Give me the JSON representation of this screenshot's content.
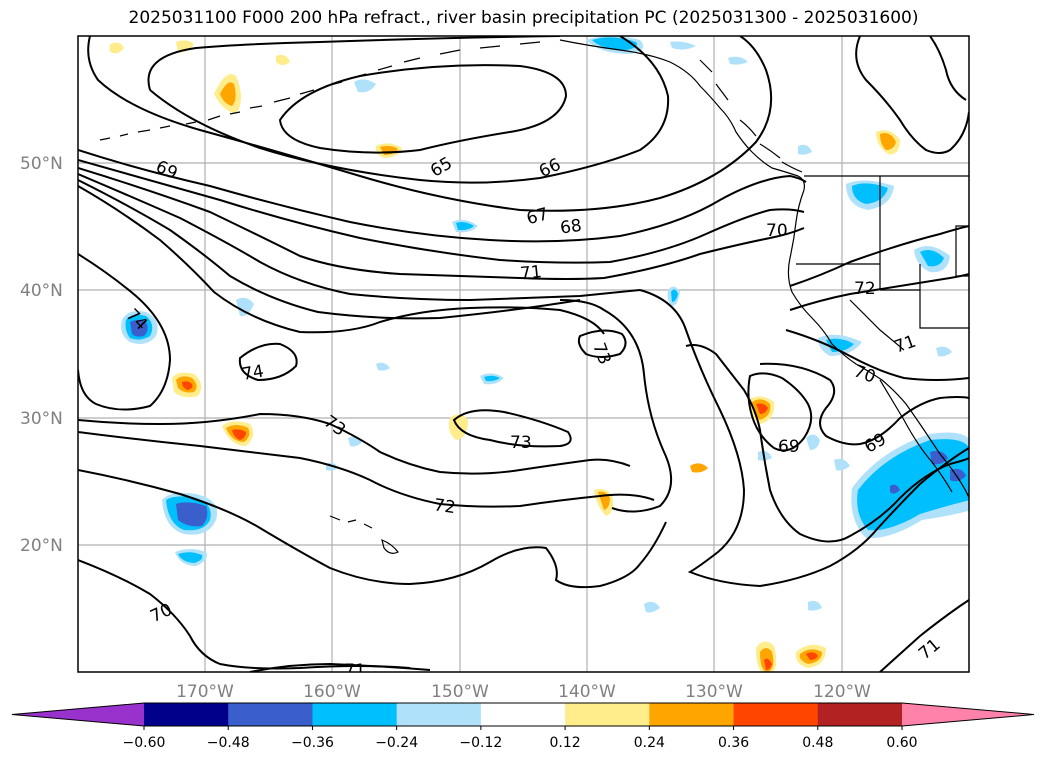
{
  "title": "2025031100 F000 200 hPa refract., river basin precipitation PC (2025031300 - 2025031600)",
  "map": {
    "lon_range": [
      -180,
      -110
    ],
    "lat_range": [
      10,
      60
    ],
    "grid": true,
    "lat_ticks": [
      {
        "lat": 50,
        "label": "50°N"
      },
      {
        "lat": 40,
        "label": "40°N"
      },
      {
        "lat": 30,
        "label": "30°N"
      },
      {
        "lat": 20,
        "label": "20°N"
      }
    ],
    "lon_ticks": [
      {
        "lon": -170,
        "label": "170°W"
      },
      {
        "lon": -160,
        "label": "160°W"
      },
      {
        "lon": -150,
        "label": "150°W"
      },
      {
        "lon": -140,
        "label": "140°W"
      },
      {
        "lon": -130,
        "label": "130°W"
      },
      {
        "lon": -120,
        "label": "120°W"
      }
    ],
    "contour_labels": [
      "65",
      "66",
      "67",
      "68",
      "69",
      "69",
      "69",
      "70",
      "70",
      "70",
      "71",
      "71",
      "71",
      "71",
      "72",
      "72",
      "73",
      "73",
      "73",
      "74",
      "74"
    ]
  },
  "colorbar": {
    "levels": [
      "−0.60",
      "−0.48",
      "−0.36",
      "−0.24",
      "−0.12",
      "0.12",
      "0.24",
      "0.36",
      "0.48",
      "0.60"
    ],
    "colors": [
      "#9932cc",
      "#00008b",
      "#3a5fcd",
      "#00bfff",
      "#afe2fa",
      "#ffffff",
      "#ffec8b",
      "#ffa500",
      "#ff4500",
      "#b22222",
      "#ff82ab"
    ],
    "extend": "both"
  },
  "chart_data": {
    "type": "contour",
    "title": "2025031100 F000 200 hPa refract., river basin precipitation PC (2025031300 - 2025031600)",
    "contour_levels": [
      65,
      66,
      67,
      68,
      69,
      70,
      71,
      72,
      73,
      74
    ],
    "fill_levels": [
      -0.6,
      -0.48,
      -0.36,
      -0.24,
      -0.12,
      0.12,
      0.24,
      0.36,
      0.48,
      0.6
    ],
    "xlim": [
      -180,
      -110
    ],
    "ylim": [
      10,
      60
    ]
  }
}
